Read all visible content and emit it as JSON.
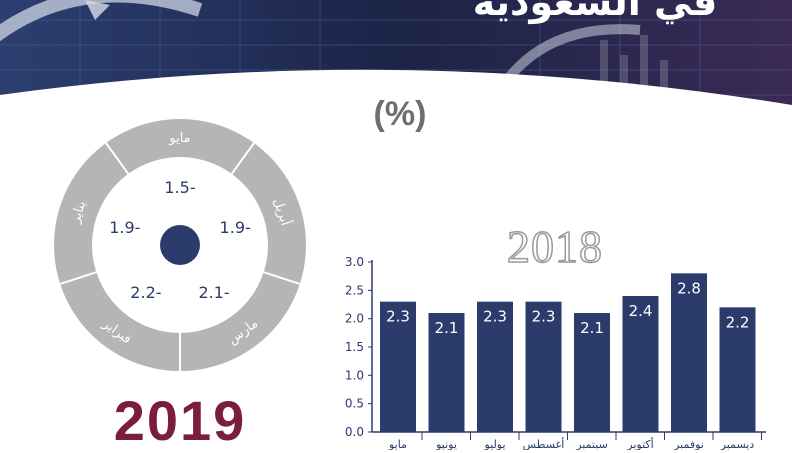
{
  "header": {
    "headline": "في السعودية"
  },
  "unit_label": "(%)",
  "chart_data": [
    {
      "type": "pie",
      "title": "2019",
      "categories": [
        "مايو",
        "أبريل",
        "مارس",
        "فبراير",
        "يناير"
      ],
      "values": [
        -1.5,
        -1.9,
        -2.1,
        -2.2,
        -1.9
      ],
      "value_labels": [
        "1.5-",
        "1.9-",
        "2.1-",
        "2.2-",
        "1.9-"
      ]
    },
    {
      "type": "bar",
      "title": "2018",
      "categories": [
        "مايو",
        "يونيو",
        "يوليو",
        "أغسطس",
        "سبتمبر",
        "أكتوبر",
        "نوفمبر",
        "ديسمبر"
      ],
      "values": [
        2.3,
        2.1,
        2.3,
        2.3,
        2.1,
        2.4,
        2.8,
        2.2
      ],
      "ylim": [
        0,
        3.0
      ],
      "yticks": [
        "0.0",
        "0.5",
        "1.0",
        "1.5",
        "2.0",
        "2.5",
        "3.0"
      ],
      "grid": false
    }
  ],
  "colors": {
    "bar": "#2b3b6b",
    "donut_outer": "#b5b5b5",
    "donut_inner": "#ffffff",
    "center": "#2b3b6b",
    "year_2019": "#7b1d3f",
    "header_bg": "#1c2447"
  }
}
